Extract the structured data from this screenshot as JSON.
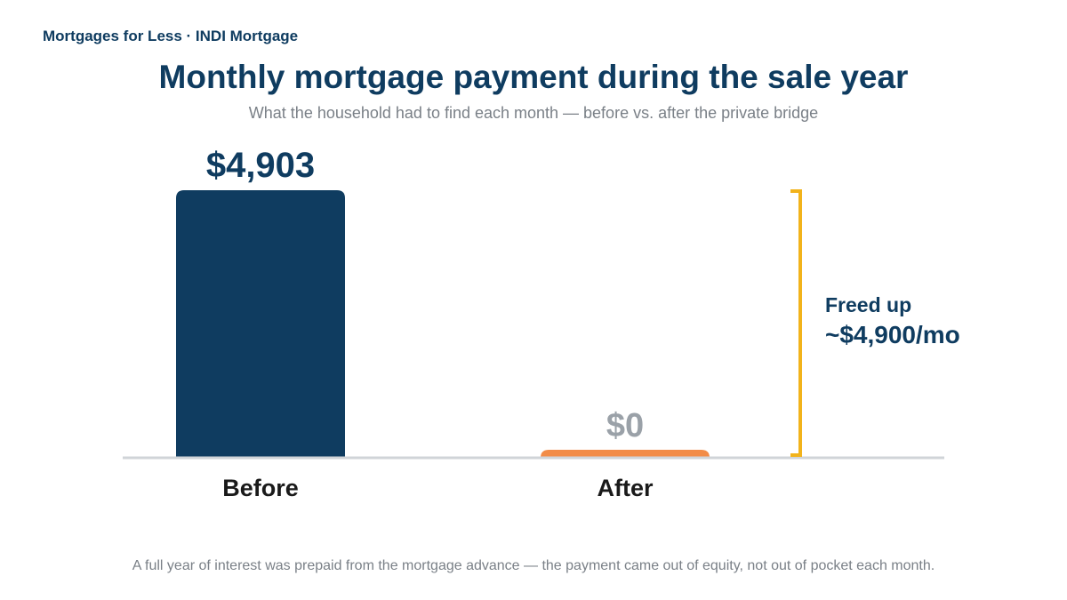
{
  "header": {
    "brand": "Mortgages for Less · INDI Mortgage"
  },
  "chart_data": {
    "type": "bar",
    "title": "Monthly mortgage payment during the sale year",
    "subtitle": "What the household had to find each month — before vs. after the private bridge",
    "categories": [
      "Before",
      "After"
    ],
    "values": [
      4903,
      0
    ],
    "value_labels": [
      "$4,903",
      "$0"
    ],
    "ylim": [
      0,
      4903
    ],
    "colors": {
      "before": "#0f3c60",
      "after": "#f28c48",
      "after_label": "#9aa1a8",
      "bracket": "#f2b31b",
      "axis": "#d0d4d8"
    },
    "annotation": {
      "line1": "Freed up",
      "line2": "~$4,900/mo"
    },
    "grid": false
  },
  "footer": {
    "note": "A full year of interest was prepaid from the mortgage advance — the payment came out of equity, not out of pocket each month."
  }
}
